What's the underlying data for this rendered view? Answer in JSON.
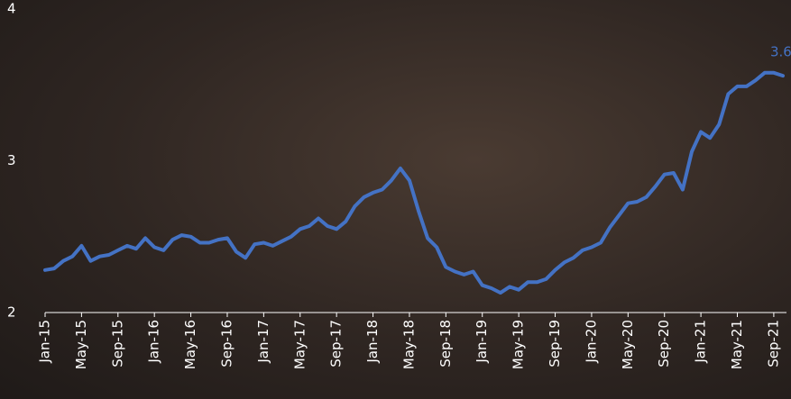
{
  "chart_data": {
    "type": "line",
    "categories": [
      "Jan-15",
      null,
      null,
      null,
      "May-15",
      null,
      null,
      null,
      "Sep-15",
      null,
      null,
      null,
      "Jan-16",
      null,
      null,
      null,
      "May-16",
      null,
      null,
      null,
      "Sep-16",
      null,
      null,
      null,
      "Jan-17",
      null,
      null,
      null,
      "May-17",
      null,
      null,
      null,
      "Sep-17",
      null,
      null,
      null,
      "Jan-18",
      null,
      null,
      null,
      "May-18",
      null,
      null,
      null,
      "Sep-18",
      null,
      null,
      null,
      "Jan-19",
      null,
      null,
      null,
      "May-19",
      null,
      null,
      null,
      "Sep-19",
      null,
      null,
      null,
      "Jan-20",
      null,
      null,
      null,
      "May-20",
      null,
      null,
      null,
      "Sep-20",
      null,
      null,
      null,
      "Jan-21",
      null,
      null,
      null,
      "May-21",
      null,
      null,
      null,
      "Sep-21",
      null
    ],
    "values": [
      2.28,
      2.29,
      2.34,
      2.37,
      2.44,
      2.34,
      2.37,
      2.38,
      2.41,
      2.44,
      2.42,
      2.49,
      2.43,
      2.41,
      2.48,
      2.51,
      2.5,
      2.46,
      2.46,
      2.48,
      2.49,
      2.4,
      2.36,
      2.45,
      2.46,
      2.44,
      2.47,
      2.5,
      2.55,
      2.57,
      2.62,
      2.57,
      2.55,
      2.6,
      2.7,
      2.76,
      2.79,
      2.81,
      2.87,
      2.95,
      2.87,
      2.67,
      2.49,
      2.43,
      2.3,
      2.27,
      2.25,
      2.27,
      2.18,
      2.16,
      2.13,
      2.17,
      2.15,
      2.2,
      2.2,
      2.22,
      2.28,
      2.33,
      2.36,
      2.41,
      2.43,
      2.46,
      2.56,
      2.64,
      2.72,
      2.73,
      2.76,
      2.83,
      2.91,
      2.92,
      2.81,
      3.06,
      3.19,
      3.15,
      3.24,
      3.44,
      3.49,
      3.49,
      3.53,
      3.58,
      3.58,
      3.56
    ],
    "value_labels": [
      null,
      null,
      null,
      null,
      null,
      null,
      null,
      null,
      null,
      null,
      null,
      null,
      null,
      null,
      null,
      null,
      null,
      null,
      null,
      null,
      null,
      null,
      null,
      null,
      null,
      null,
      null,
      null,
      null,
      null,
      null,
      null,
      null,
      null,
      null,
      null,
      null,
      null,
      null,
      null,
      null,
      null,
      null,
      null,
      null,
      null,
      null,
      null,
      null,
      null,
      null,
      null,
      null,
      null,
      null,
      null,
      null,
      null,
      null,
      null,
      null,
      null,
      null,
      null,
      null,
      null,
      null,
      null,
      null,
      null,
      null,
      null,
      null,
      null,
      null,
      null,
      null,
      null,
      null,
      null,
      null,
      "3.6"
    ],
    "color": "#4472c4",
    "ylim": [
      2,
      4
    ],
    "yticks": [
      2,
      3,
      4
    ]
  }
}
